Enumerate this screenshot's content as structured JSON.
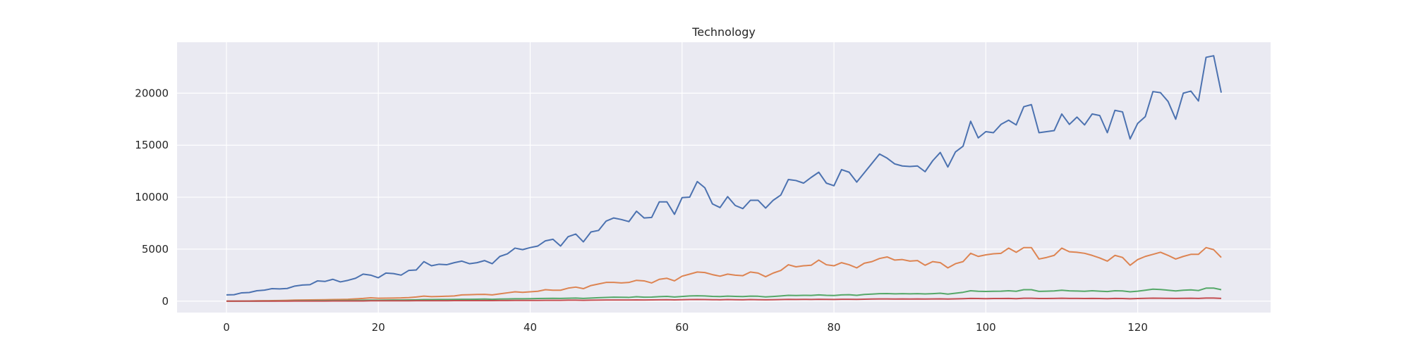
{
  "chart_data": {
    "type": "line",
    "title": "Technology",
    "xlabel": "",
    "ylabel": "",
    "xlim": [
      -6.5,
      137.5
    ],
    "ylim": [
      -1100,
      24900
    ],
    "xticks": [
      0,
      20,
      40,
      60,
      80,
      100,
      120
    ],
    "yticks": [
      0,
      5000,
      10000,
      15000,
      20000
    ],
    "grid": true,
    "background": "#eaeaf2",
    "series": [
      {
        "color": "#4c72b0",
        "values": [
          600,
          620,
          800,
          830,
          1000,
          1060,
          1200,
          1180,
          1220,
          1450,
          1550,
          1580,
          1950,
          1900,
          2100,
          1850,
          2000,
          2200,
          2600,
          2500,
          2250,
          2700,
          2650,
          2500,
          2950,
          3000,
          3800,
          3400,
          3550,
          3500,
          3700,
          3850,
          3600,
          3700,
          3900,
          3600,
          4300,
          4550,
          5100,
          4950,
          5150,
          5300,
          5800,
          5950,
          5300,
          6200,
          6450,
          5700,
          6650,
          6800,
          7700,
          8000,
          7850,
          7650,
          8650,
          8000,
          8050,
          9550,
          9550,
          8350,
          9950,
          10000,
          11500,
          10900,
          9350,
          9000,
          10050,
          9200,
          8900,
          9700,
          9700,
          8950,
          9700,
          10200,
          11700,
          11600,
          11350,
          11900,
          12400,
          11350,
          11100,
          12650,
          12400,
          11450,
          12350,
          13250,
          14150,
          13750,
          13200,
          13000,
          12950,
          13000,
          12450,
          13500,
          14300,
          12900,
          14350,
          14900,
          17300,
          15700,
          16300,
          16200,
          17000,
          17400,
          16950,
          18700,
          18900,
          16200,
          16300,
          16400,
          18000,
          17000,
          17700,
          16950,
          18000,
          17850,
          16200,
          18350,
          18200,
          15600,
          17100,
          17750,
          20150,
          20050,
          19200,
          17500,
          20000,
          20200,
          19250,
          23450,
          23600,
          20050
        ]
      },
      {
        "color": "#dd8452",
        "values": [
          0,
          0,
          10,
          20,
          30,
          40,
          50,
          60,
          80,
          100,
          110,
          120,
          130,
          140,
          150,
          160,
          180,
          220,
          260,
          320,
          280,
          290,
          300,
          310,
          340,
          400,
          480,
          430,
          450,
          470,
          500,
          600,
          620,
          640,
          650,
          600,
          700,
          800,
          900,
          850,
          900,
          950,
          1100,
          1050,
          1050,
          1250,
          1350,
          1200,
          1500,
          1650,
          1800,
          1800,
          1750,
          1800,
          2000,
          1950,
          1750,
          2100,
          2200,
          1950,
          2400,
          2600,
          2800,
          2750,
          2550,
          2400,
          2600,
          2500,
          2450,
          2800,
          2700,
          2350,
          2700,
          2950,
          3500,
          3300,
          3400,
          3450,
          3950,
          3500,
          3400,
          3700,
          3500,
          3200,
          3650,
          3800,
          4100,
          4250,
          3950,
          4000,
          3850,
          3900,
          3450,
          3800,
          3700,
          3200,
          3600,
          3800,
          4600,
          4300,
          4450,
          4550,
          4600,
          5100,
          4700,
          5150,
          5150,
          4050,
          4200,
          4400,
          5100,
          4750,
          4700,
          4600,
          4400,
          4150,
          3850,
          4400,
          4200,
          3450,
          4000,
          4300,
          4500,
          4700,
          4400,
          4050,
          4300,
          4500,
          4500,
          5150,
          4950,
          4200
        ]
      },
      {
        "color": "#55a868",
        "values": [
          0,
          0,
          0,
          0,
          0,
          10,
          10,
          20,
          20,
          30,
          40,
          40,
          50,
          50,
          60,
          60,
          70,
          80,
          90,
          100,
          90,
          100,
          110,
          110,
          120,
          130,
          150,
          150,
          160,
          160,
          170,
          180,
          180,
          190,
          200,
          180,
          200,
          210,
          230,
          230,
          240,
          250,
          260,
          270,
          260,
          280,
          300,
          260,
          300,
          330,
          360,
          380,
          370,
          360,
          420,
          380,
          390,
          430,
          460,
          400,
          450,
          500,
          520,
          500,
          460,
          440,
          480,
          460,
          440,
          480,
          470,
          410,
          450,
          500,
          560,
          540,
          560,
          550,
          600,
          560,
          540,
          600,
          620,
          560,
          640,
          680,
          720,
          730,
          700,
          720,
          700,
          720,
          690,
          720,
          760,
          680,
          760,
          850,
          1000,
          950,
          930,
          950,
          960,
          1000,
          950,
          1100,
          1100,
          940,
          960,
          980,
          1050,
          990,
          970,
          950,
          1000,
          960,
          920,
          1000,
          980,
          900,
          960,
          1050,
          1150,
          1120,
          1050,
          980,
          1050,
          1080,
          1020,
          1250,
          1250,
          1100
        ]
      },
      {
        "color": "#c44e52",
        "values": [
          0,
          0,
          0,
          0,
          0,
          0,
          0,
          0,
          0,
          10,
          10,
          10,
          10,
          10,
          20,
          20,
          20,
          20,
          20,
          30,
          30,
          30,
          30,
          30,
          30,
          40,
          40,
          40,
          40,
          40,
          50,
          50,
          50,
          50,
          60,
          50,
          60,
          60,
          70,
          70,
          70,
          70,
          80,
          80,
          80,
          90,
          90,
          80,
          90,
          100,
          110,
          110,
          110,
          110,
          120,
          110,
          120,
          130,
          140,
          120,
          140,
          150,
          160,
          150,
          140,
          130,
          150,
          140,
          130,
          150,
          140,
          130,
          140,
          150,
          170,
          160,
          170,
          160,
          180,
          170,
          160,
          180,
          180,
          170,
          190,
          200,
          210,
          210,
          200,
          210,
          200,
          210,
          200,
          210,
          220,
          200,
          220,
          240,
          260,
          250,
          240,
          250,
          250,
          260,
          240,
          280,
          280,
          250,
          250,
          260,
          280,
          260,
          260,
          250,
          260,
          250,
          240,
          260,
          250,
          230,
          250,
          270,
          290,
          280,
          270,
          260,
          270,
          280,
          260,
          300,
          300,
          260
        ]
      }
    ]
  }
}
